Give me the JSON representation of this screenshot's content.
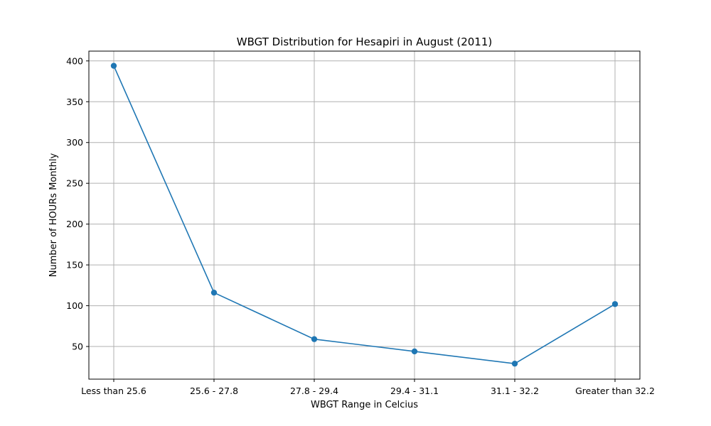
{
  "chart_data": {
    "type": "line",
    "title": "WBGT Distribution for Hesapiri in August (2011)",
    "xlabel": "WBGT Range in Celcius",
    "ylabel": "Number of HOURs Monthly",
    "categories": [
      "Less than 25.6",
      "25.6 - 27.8",
      "27.8 - 29.4",
      "29.4 - 31.1",
      "31.1 - 32.2",
      "Greater than 32.2"
    ],
    "values": [
      394,
      116,
      59,
      44,
      29,
      102
    ],
    "ylim": [
      10,
      412
    ],
    "yticks": [
      50,
      100,
      150,
      200,
      250,
      300,
      350,
      400
    ],
    "grid": true,
    "color": "#1f77b4"
  }
}
